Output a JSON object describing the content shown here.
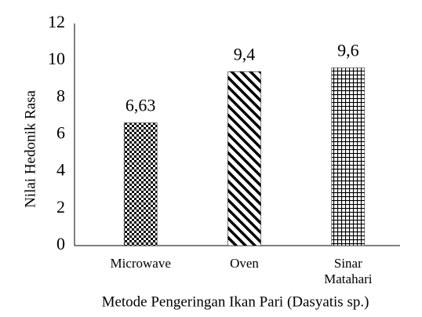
{
  "chart_data": {
    "type": "bar",
    "y_label": "Nilai Hedonik Rasa",
    "x_label": "Metode Pengeringan Ikan Pari (Dasyatis sp.)",
    "categories": [
      "Microwave",
      "Oven",
      "Sinar Matahari"
    ],
    "values": [
      6.63,
      9.4,
      9.6
    ],
    "value_labels": [
      "6,63",
      "9,4",
      "9,6"
    ],
    "color": "#000000",
    "ylim": [
      0,
      12
    ],
    "yticks": [
      0,
      2,
      4,
      6,
      8,
      10,
      12
    ],
    "grid": false
  }
}
